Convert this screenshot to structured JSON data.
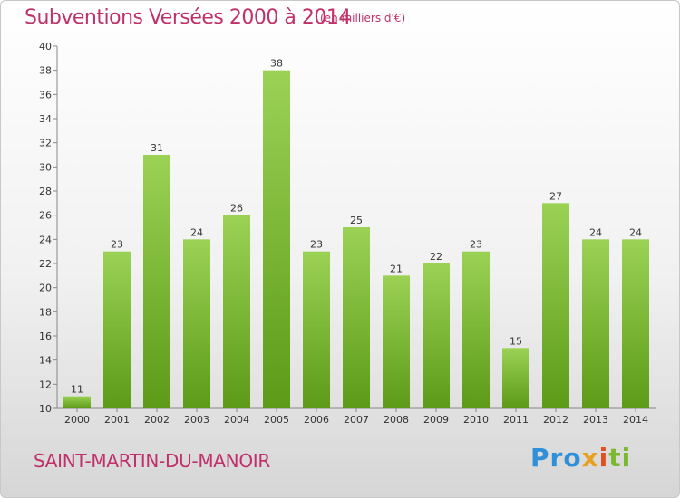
{
  "title": "Subventions Versées 2000 à 2014",
  "units_note": "(en milliers d'€)",
  "commune_name": "SAINT-MARTIN-DU-MANOIR",
  "logo": {
    "text": "Proxiti",
    "parts": [
      "Pro",
      "x",
      "i",
      "ti"
    ]
  },
  "colors": {
    "title": "#c0306a",
    "bar_top": "#9bd255",
    "bar_bottom": "#5c9a18"
  },
  "chart_data": {
    "type": "bar",
    "categories": [
      "2000",
      "2001",
      "2002",
      "2003",
      "2004",
      "2005",
      "2006",
      "2007",
      "2008",
      "2009",
      "2010",
      "2011",
      "2012",
      "2013",
      "2014"
    ],
    "values": [
      11,
      23,
      31,
      24,
      26,
      38,
      23,
      25,
      21,
      22,
      23,
      15,
      27,
      24,
      24
    ],
    "ylim": [
      10,
      40
    ],
    "yticks": [
      10,
      12,
      14,
      16,
      18,
      20,
      22,
      24,
      26,
      28,
      30,
      32,
      34,
      36,
      38,
      40
    ],
    "grid": false,
    "legend": "none"
  }
}
